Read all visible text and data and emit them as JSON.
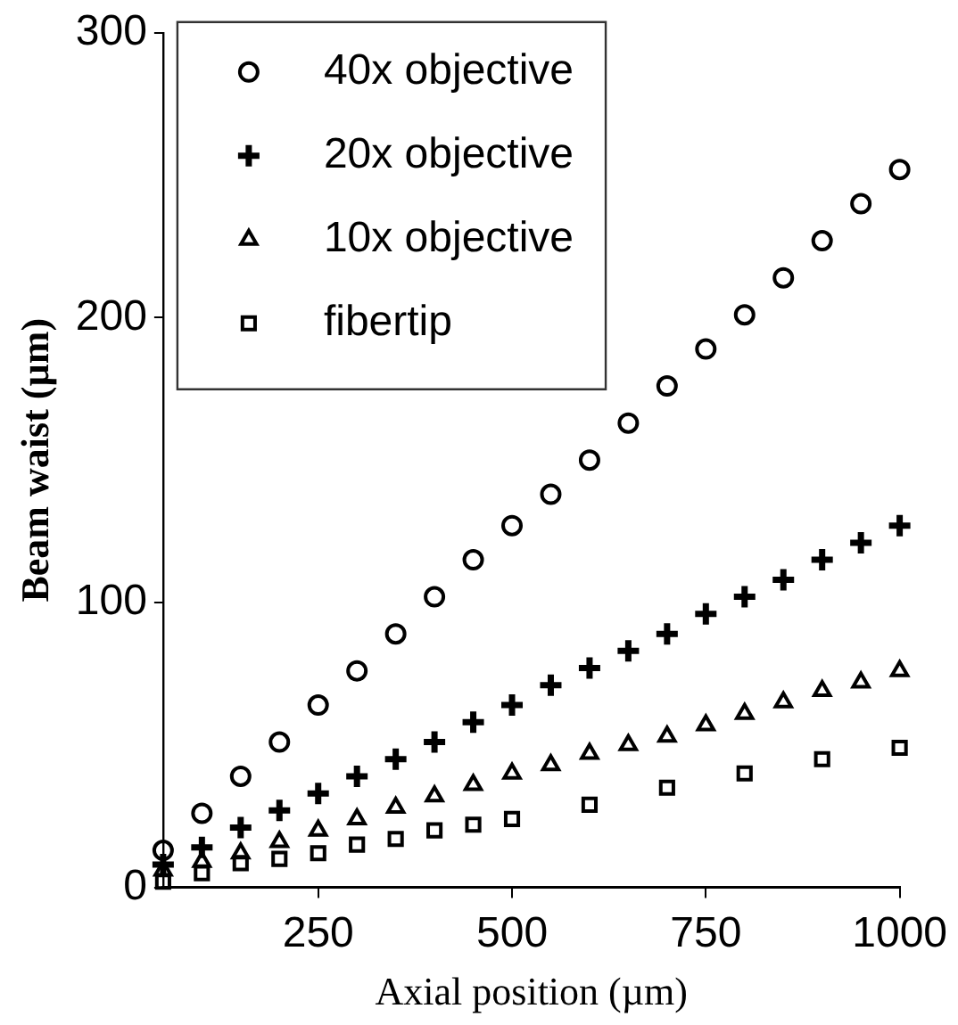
{
  "chart_data": {
    "type": "scatter",
    "xlabel": "Axial position (µm)",
    "ylabel": "Beam waist (µm)",
    "xlim": [
      50,
      1000
    ],
    "xticks": [
      250,
      500,
      750,
      1000
    ],
    "ylim": [
      0,
      300
    ],
    "yticks": [
      0,
      100,
      200,
      300
    ],
    "grid": false,
    "legend": "top left",
    "series": [
      {
        "name": "40x objective",
        "color": "#000000",
        "marker": "circle",
        "x": [
          50,
          100,
          150,
          200,
          250,
          300,
          350,
          400,
          450,
          500,
          550,
          600,
          650,
          700,
          750,
          800,
          850,
          900,
          950,
          1000
        ],
        "values": [
          13,
          26,
          39,
          51,
          64,
          76,
          89,
          102,
          115,
          127,
          138,
          150,
          163,
          176,
          189,
          201,
          214,
          227,
          240,
          252
        ]
      },
      {
        "name": "20x objective",
        "color": "#000000",
        "marker": "cross",
        "x": [
          50,
          100,
          150,
          200,
          250,
          300,
          350,
          400,
          450,
          500,
          550,
          600,
          650,
          700,
          750,
          800,
          850,
          900,
          950,
          1000
        ],
        "values": [
          8,
          14,
          21,
          27,
          33,
          39,
          45,
          51,
          58,
          64,
          71,
          77,
          83,
          89,
          96,
          102,
          108,
          115,
          121,
          127
        ]
      },
      {
        "name": "10x objective",
        "color": "#000000",
        "marker": "triangle",
        "x": [
          50,
          100,
          150,
          200,
          250,
          300,
          350,
          400,
          450,
          500,
          550,
          600,
          650,
          700,
          750,
          800,
          850,
          900,
          950,
          1000
        ],
        "values": [
          6,
          9,
          12,
          16,
          20,
          24,
          28,
          32,
          36,
          40,
          43,
          47,
          50,
          53,
          57,
          61,
          65,
          69,
          72,
          76
        ]
      },
      {
        "name": "fibertip",
        "color": "#000000",
        "marker": "square",
        "x": [
          50,
          100,
          150,
          200,
          250,
          300,
          350,
          400,
          450,
          500,
          600,
          700,
          800,
          900,
          1000
        ],
        "values": [
          2,
          5,
          8.5,
          10,
          12,
          15,
          17,
          20,
          22,
          24,
          29,
          35,
          40,
          45,
          49
        ]
      }
    ]
  }
}
